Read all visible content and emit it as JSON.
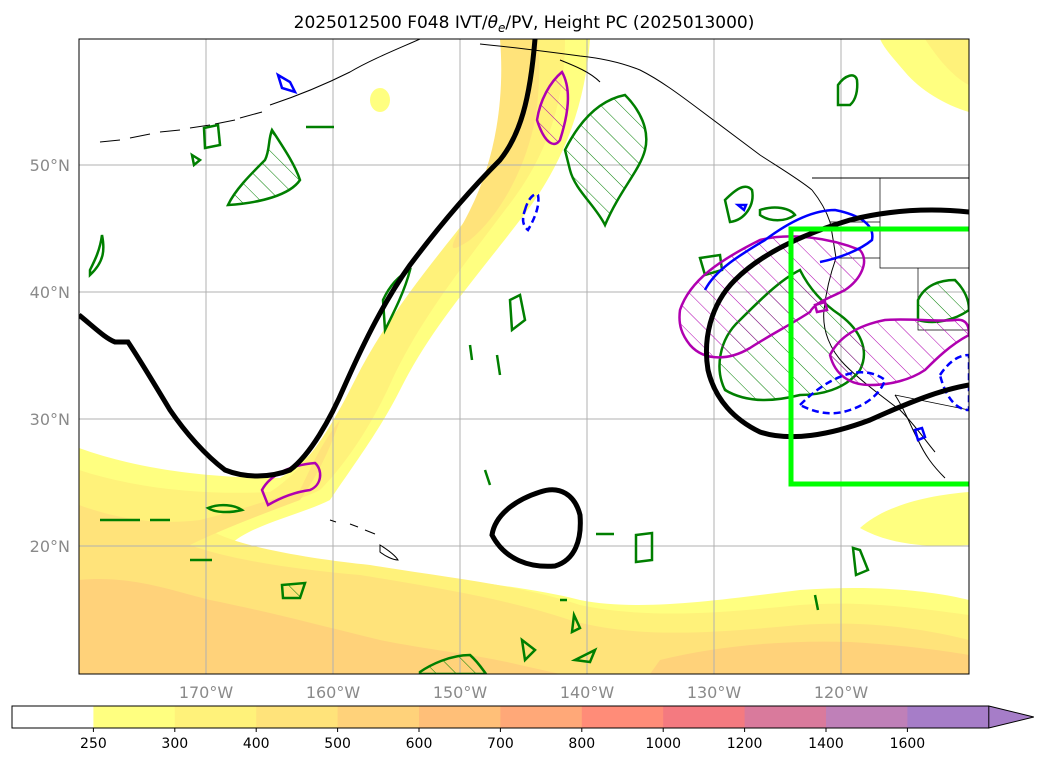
{
  "title": "2025012500 F048 IVT/θe/PV, Height PC (2025013000)",
  "title_parts": {
    "pre": "2025012500 F048 IVT/",
    "theta": "θ",
    "sub": "e",
    "post": "/PV, Height PC (2025013000)"
  },
  "lat_labels": [
    "50°N",
    "40°N",
    "30°N",
    "20°N"
  ],
  "lon_labels": [
    "170°W",
    "160°W",
    "150°W",
    "140°W",
    "130°W",
    "120°W"
  ],
  "colorbar": {
    "ticks": [
      "250",
      "300",
      "400",
      "500",
      "600",
      "700",
      "800",
      "1000",
      "1200",
      "1400",
      "1600"
    ],
    "colors": [
      "#ffffff",
      "#ffff80",
      "#fff27a",
      "#ffe37a",
      "#ffd27a",
      "#ffbf78",
      "#ffa878",
      "#ff8c78",
      "#f47a80",
      "#d97a9c",
      "#bf80b8",
      "#a67dc8"
    ]
  },
  "colors": {
    "ivt_250": "#ffff80",
    "ivt_300": "#fff27a",
    "ivt_400": "#ffe37a",
    "ivt_500": "#ffd27a",
    "height_contour": "#000000",
    "theta_e": "#007f00",
    "pv": "#b000b0",
    "blue_contour": "#0000ff",
    "box": "#00ff00",
    "grid": "#b0b0b0"
  }
}
